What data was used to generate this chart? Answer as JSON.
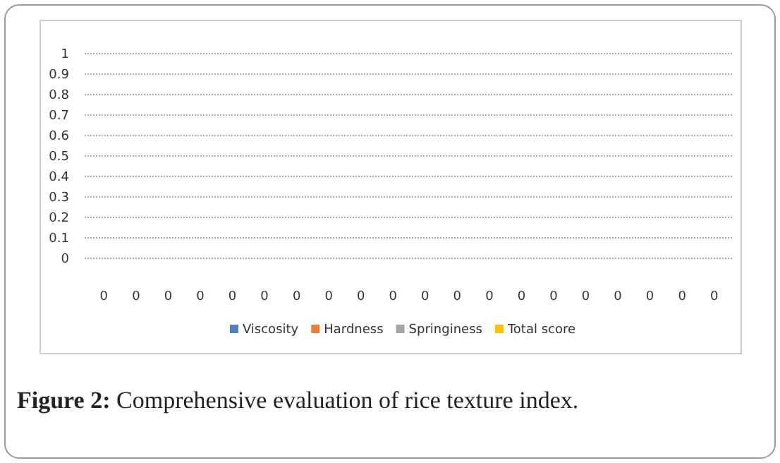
{
  "chart_data": {
    "type": "bar",
    "categories": [
      "0",
      "0",
      "0",
      "0",
      "0",
      "0",
      "0",
      "0",
      "0",
      "0",
      "0",
      "0",
      "0",
      "0",
      "0",
      "0",
      "0",
      "0",
      "0",
      "0"
    ],
    "series": [
      {
        "name": "Viscosity",
        "color": "#4f81bd",
        "values": [
          0,
          0,
          0,
          0,
          0,
          0,
          0,
          0,
          0,
          0,
          0,
          0,
          0,
          0,
          0,
          0,
          0,
          0,
          0,
          0
        ]
      },
      {
        "name": "Hardness",
        "color": "#f07c3a",
        "values": [
          0,
          0,
          0,
          0,
          0,
          0,
          0,
          0,
          0,
          0,
          0,
          0,
          0,
          0,
          0,
          0,
          0,
          0,
          0,
          0
        ]
      },
      {
        "name": "Springiness",
        "color": "#a5a5a5",
        "values": [
          0,
          0,
          0,
          0,
          0,
          0,
          0,
          0,
          0,
          0,
          0,
          0,
          0,
          0,
          0,
          0,
          0,
          0,
          0,
          0
        ]
      },
      {
        "name": "Total score",
        "color": "#ffc000",
        "values": [
          0,
          0,
          0,
          0,
          0,
          0,
          0,
          0,
          0,
          0,
          0,
          0,
          0,
          0,
          0,
          0,
          0,
          0,
          0,
          0
        ]
      }
    ],
    "ylim": [
      0,
      1
    ],
    "yticks": [
      0,
      0.1,
      0.2,
      0.3,
      0.4,
      0.5,
      0.6,
      0.7,
      0.8,
      0.9,
      1
    ],
    "grid": "y",
    "legend": "bottom",
    "annotations": [
      "Figure 2: Comprehensive evaluation of rice texture index."
    ]
  }
}
